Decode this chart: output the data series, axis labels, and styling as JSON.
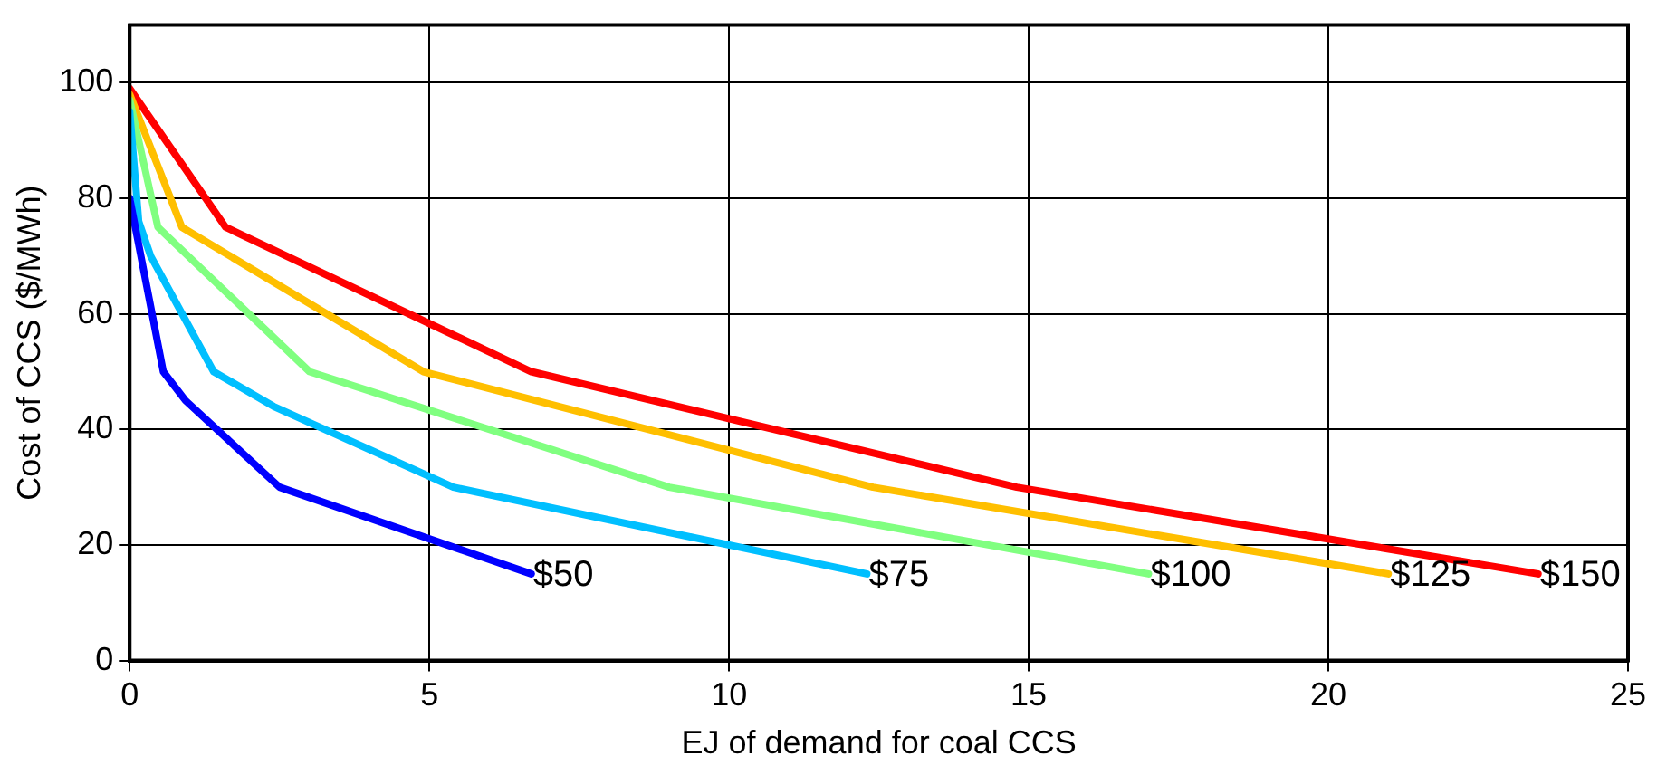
{
  "chart_data": {
    "type": "line",
    "xlabel": "EJ of demand for coal CCS",
    "ylabel": "Cost of CCS ($/MWh)",
    "xlim": [
      0,
      25
    ],
    "xticks": [
      0,
      5,
      10,
      15,
      20,
      25
    ],
    "ylim": [
      0,
      110
    ],
    "yticks": [
      0,
      20,
      40,
      60,
      80,
      100
    ],
    "grid": true,
    "legend": false,
    "marker": "none",
    "line_style": "solid",
    "series": [
      {
        "name": "$50",
        "color": "#0000ff",
        "x": [
          0,
          0.56,
          0.93,
          2.5,
          6.7
        ],
        "values": [
          80,
          50,
          45,
          30,
          15
        ]
      },
      {
        "name": "$75",
        "color": "#00bfff",
        "x": [
          0,
          0.15,
          0.35,
          1.4,
          2.4,
          5.4,
          12.3
        ],
        "values": [
          95,
          76,
          70,
          50,
          44,
          30,
          15
        ]
      },
      {
        "name": "$100",
        "color": "#80ff80",
        "x": [
          0,
          0.47,
          3.0,
          9.0,
          17.0
        ],
        "values": [
          97,
          75,
          50,
          30,
          15
        ]
      },
      {
        "name": "$125",
        "color": "#ffbf00",
        "x": [
          0,
          0.87,
          4.9,
          12.4,
          21.0
        ],
        "values": [
          98,
          75,
          50,
          30,
          15
        ]
      },
      {
        "name": "$150",
        "color": "#ff0000",
        "x": [
          0,
          1.6,
          6.7,
          14.8,
          23.5
        ],
        "values": [
          99,
          75,
          50,
          30,
          15
        ]
      }
    ]
  }
}
